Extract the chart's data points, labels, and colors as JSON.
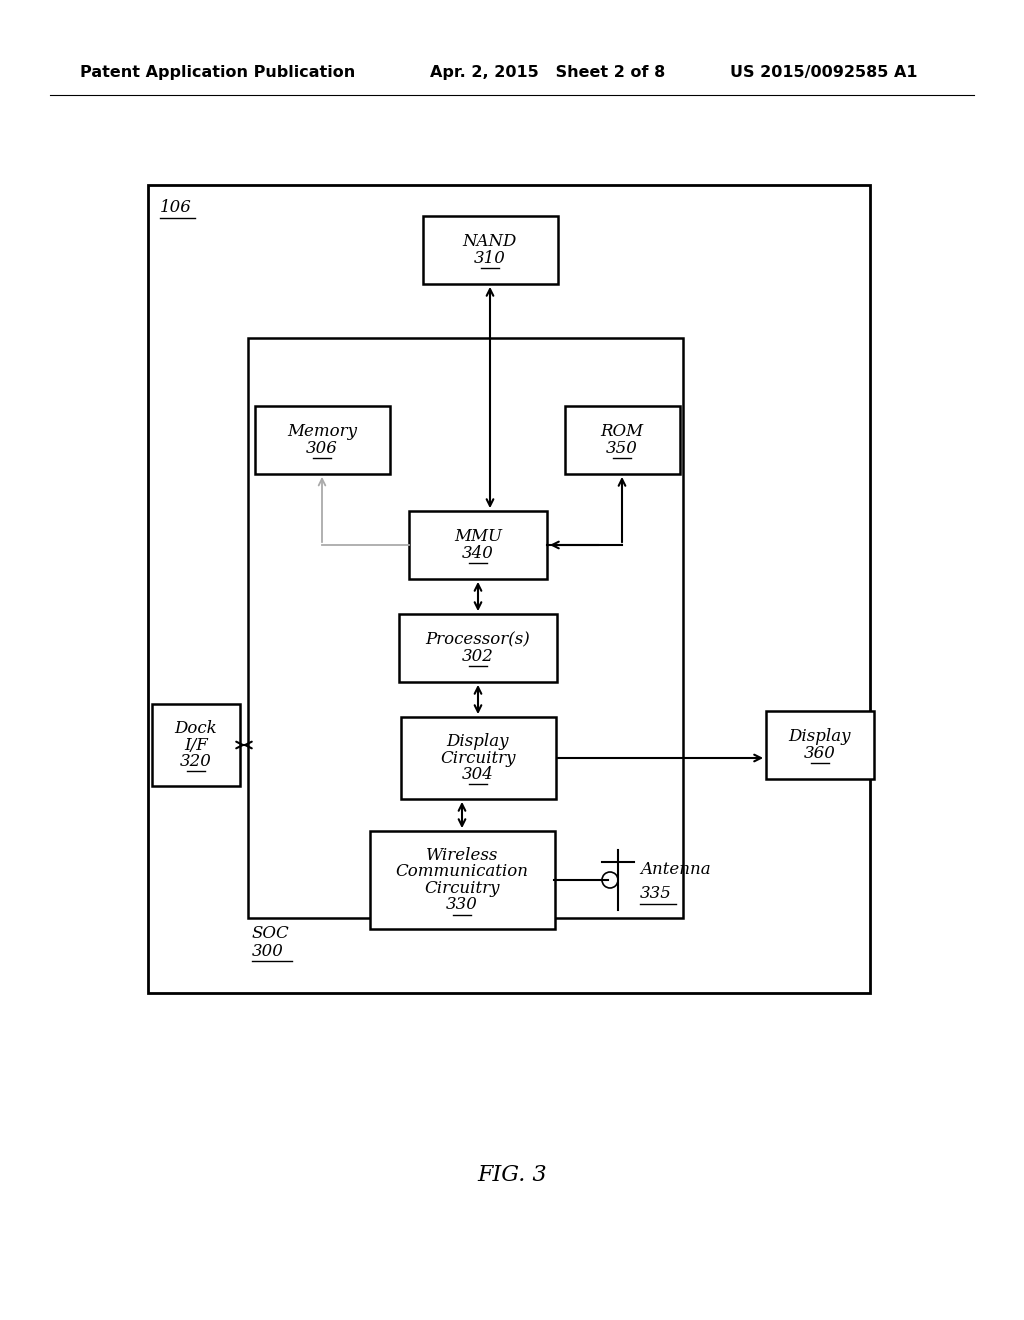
{
  "bg_color": "#ffffff",
  "header_left": "Patent Application Publication",
  "header_mid": "Apr. 2, 2015   Sheet 2 of 8",
  "header_right": "US 2015/0092585 A1",
  "footer": "FIG. 3"
}
